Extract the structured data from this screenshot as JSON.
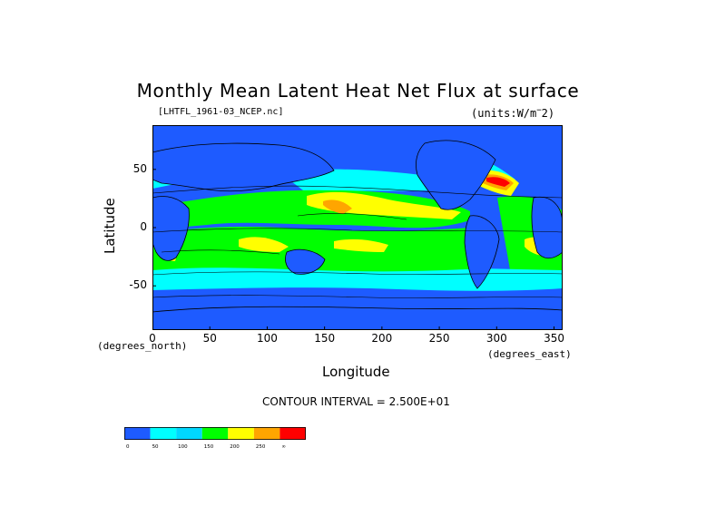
{
  "title": "Monthly Mean Latent Heat Net Flux at surface",
  "file_label": "[LHTFL_1961-03_NCEP.nc]",
  "units_label": "(units:W/m^-2)",
  "x_axis": {
    "label": "Longitude",
    "unit_label": "(degrees_east)",
    "ticks": [
      "0",
      "50",
      "100",
      "150",
      "200",
      "250",
      "300",
      "350"
    ],
    "tick_values": [
      0,
      50,
      100,
      150,
      200,
      250,
      300,
      350
    ],
    "range": [
      0,
      357.5
    ]
  },
  "y_axis": {
    "label": "Latitude",
    "unit_label": "(degrees_north)",
    "ticks": [
      "50",
      "0",
      "-50"
    ],
    "tick_values": [
      50,
      0,
      -50
    ],
    "range": [
      -88,
      88
    ]
  },
  "contour_interval": "CONTOUR INTERVAL = 2.500E+01",
  "legend": {
    "labels": [
      "0",
      "50",
      "100",
      "150",
      "200",
      "250",
      "∞"
    ],
    "colors": [
      "#1e5bff",
      "#00ffff",
      "#00d8ff",
      "#00ff00",
      "#ffff00",
      "#ffa500",
      "#ff0000"
    ]
  },
  "colors": {
    "land": "#1e5bff",
    "ocean_high": "#1e5bff",
    "bin_0_50": "#1e5bff",
    "bin_50_100": "#00ffff",
    "bin_100_150": "#00d8ff",
    "bin_150_200": "#00ff00",
    "bin_200_250": "#ffff00",
    "bin_250_300": "#ffa500",
    "bin_300_plus": "#ff0000"
  }
}
